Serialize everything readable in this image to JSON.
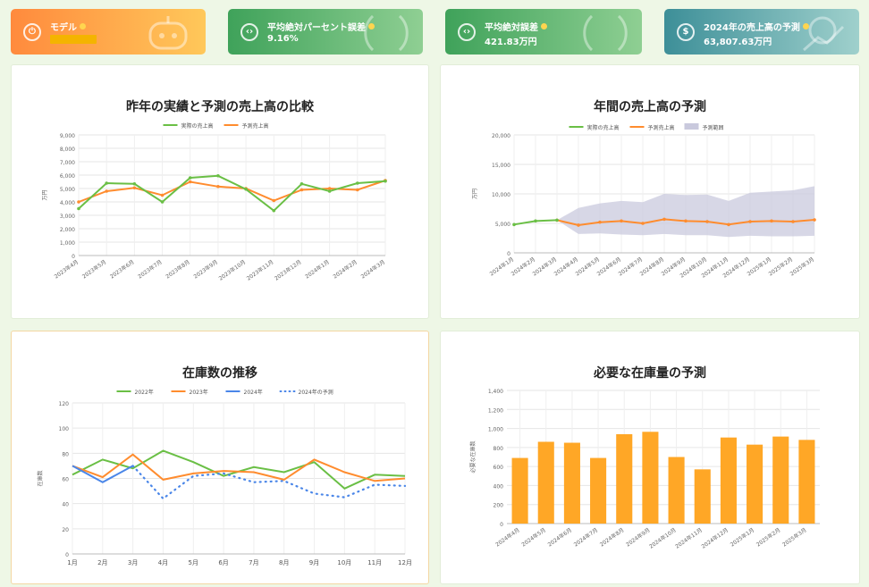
{
  "cards": [
    {
      "label": "モデル",
      "value": "",
      "icon": "power-icon"
    },
    {
      "label": "平均絶対パーセント誤差",
      "value": "9.16%",
      "icon": "bracket-icon"
    },
    {
      "label": "平均絶対誤差",
      "value": "421.83万円",
      "icon": "bracket-icon"
    },
    {
      "label": "2024年の売上高の予測",
      "value": "63,807.63万円",
      "icon": "money-icon"
    }
  ],
  "colors": {
    "green": "#6abf45",
    "orange": "#ff8c2e",
    "blue": "#4a86e8",
    "bar": "#ffa726",
    "band": "#c9c9dd"
  },
  "panels": {
    "p1": {
      "title": "昨年の実績と予測の売上高の比較"
    },
    "p2": {
      "title": "年間の売上高の予測"
    },
    "p3": {
      "title": "在庫数の推移"
    },
    "p4": {
      "title": "必要な在庫量の予測"
    }
  },
  "chart_data": [
    {
      "type": "line",
      "title": "昨年の実績と予測の売上高の比較",
      "ylabel": "万円",
      "ylim": [
        0,
        9000
      ],
      "yticks": [
        "0",
        "1,000",
        "2,000",
        "3,000",
        "4,000",
        "5,000",
        "6,000",
        "7,000",
        "8,000",
        "9,000"
      ],
      "categories": [
        "2023年4月",
        "2023年5月",
        "2023年6月",
        "2023年7月",
        "2023年8月",
        "2023年9月",
        "2023年10月",
        "2023年11月",
        "2023年12月",
        "2024年1月",
        "2024年2月",
        "2024年3月"
      ],
      "series": [
        {
          "name": "実際の売上高",
          "values": [
            3500,
            5400,
            5350,
            4000,
            5800,
            5950,
            4950,
            3350,
            5350,
            4800,
            5400,
            5550
          ]
        },
        {
          "name": "予測売上高",
          "values": [
            4000,
            4800,
            5050,
            4500,
            5500,
            5150,
            5000,
            4100,
            4900,
            5000,
            4900,
            5600
          ]
        }
      ]
    },
    {
      "type": "area",
      "title": "年間の売上高の予測",
      "ylabel": "万円",
      "ylim": [
        0,
        20000
      ],
      "yticks": [
        "0",
        "5,000",
        "10,000",
        "15,000",
        "20,000"
      ],
      "categories": [
        "2024年1月",
        "2024年2月",
        "2024年3月",
        "2024年4月",
        "2024年5月",
        "2024年6月",
        "2024年7月",
        "2024年8月",
        "2024年9月",
        "2024年10月",
        "2024年11月",
        "2024年12月",
        "2025年1月",
        "2025年2月",
        "2025年3月"
      ],
      "series": [
        {
          "name": "実際の売上高",
          "values": [
            4800,
            5400,
            5550,
            null,
            null,
            null,
            null,
            null,
            null,
            null,
            null,
            null,
            null,
            null,
            null
          ]
        },
        {
          "name": "予測売上高",
          "values": [
            null,
            null,
            5550,
            4700,
            5200,
            5400,
            5000,
            5700,
            5400,
            5300,
            4800,
            5300,
            5400,
            5300,
            5600
          ]
        },
        {
          "name": "予測範囲",
          "lower": [
            null,
            null,
            5550,
            3200,
            3300,
            3100,
            3000,
            3200,
            3000,
            3000,
            2700,
            2900,
            2800,
            2800,
            2900
          ],
          "upper": [
            null,
            null,
            5550,
            7600,
            8400,
            8800,
            8600,
            10000,
            9800,
            9900,
            8800,
            10200,
            10400,
            10600,
            11300
          ]
        }
      ]
    },
    {
      "type": "line",
      "title": "在庫数の推移",
      "ylabel": "在庫数",
      "ylim": [
        0,
        120
      ],
      "yticks": [
        "0",
        "20",
        "40",
        "60",
        "80",
        "100",
        "120"
      ],
      "categories": [
        "1月",
        "2月",
        "3月",
        "4月",
        "5月",
        "6月",
        "7月",
        "8月",
        "9月",
        "10月",
        "11月",
        "12月"
      ],
      "series": [
        {
          "name": "2022年",
          "values": [
            63,
            75,
            68,
            82,
            73,
            62,
            69,
            65,
            73,
            52,
            63,
            62
          ]
        },
        {
          "name": "2023年",
          "values": [
            70,
            61,
            79,
            59,
            64,
            66,
            65,
            59,
            75,
            65,
            58,
            60
          ]
        },
        {
          "name": "2024年",
          "values": [
            70,
            57,
            70,
            null,
            null,
            null,
            null,
            null,
            null,
            null,
            null,
            null
          ]
        },
        {
          "name": "2024年の予測",
          "values": [
            null,
            null,
            70,
            44,
            62,
            64,
            57,
            58,
            48,
            45,
            55,
            54
          ]
        }
      ]
    },
    {
      "type": "bar",
      "title": "必要な在庫量の予測",
      "ylabel": "必要な在庫数",
      "ylim": [
        0,
        1400
      ],
      "yticks": [
        "0",
        "200",
        "400",
        "600",
        "800",
        "1,000",
        "1,200",
        "1,400"
      ],
      "categories": [
        "2024年4月",
        "2024年5月",
        "2024年6月",
        "2024年7月",
        "2024年8月",
        "2024年9月",
        "2024年10月",
        "2024年11月",
        "2024年12月",
        "2025年1月",
        "2025年2月",
        "2025年3月"
      ],
      "values": [
        690,
        860,
        850,
        690,
        940,
        965,
        700,
        570,
        905,
        830,
        915,
        880
      ]
    }
  ]
}
